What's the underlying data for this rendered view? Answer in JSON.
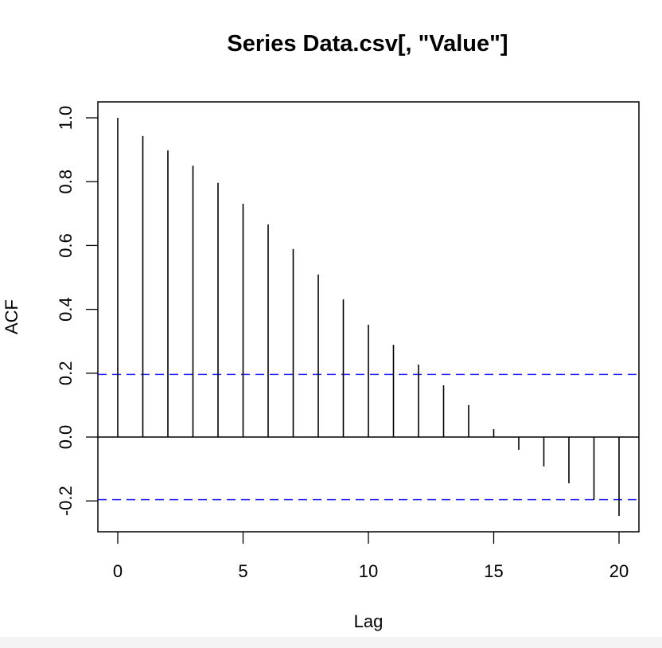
{
  "chart_data": {
    "type": "bar",
    "subtype": "acf-stem",
    "title": "Series  Data.csv[, \"Value\"]",
    "xlabel": "Lag",
    "ylabel": "ACF",
    "x": [
      0,
      1,
      2,
      3,
      4,
      5,
      6,
      7,
      8,
      9,
      10,
      11,
      12,
      13,
      14,
      15,
      16,
      17,
      18,
      19,
      20
    ],
    "values": [
      1.0,
      0.943,
      0.898,
      0.85,
      0.796,
      0.731,
      0.666,
      0.589,
      0.509,
      0.431,
      0.352,
      0.289,
      0.227,
      0.162,
      0.1,
      0.025,
      -0.04,
      -0.092,
      -0.145,
      -0.197,
      -0.247
    ],
    "confidence_bounds": [
      0.196,
      -0.196
    ],
    "xlim": [
      -0.6,
      20.8
    ],
    "ylim": [
      -0.297,
      1.05
    ],
    "xticks": [
      0,
      5,
      10,
      15,
      20
    ],
    "xtick_labels": [
      "0",
      "5",
      "10",
      "15",
      "20"
    ],
    "yticks": [
      -0.2,
      0.0,
      0.2,
      0.4,
      0.6,
      0.8,
      1.0
    ],
    "ytick_labels": [
      "-0.2",
      "0.0",
      "0.2",
      "0.4",
      "0.6",
      "0.8",
      "1.0"
    ],
    "grid": false,
    "legend": null,
    "colors": {
      "bars": "#000000",
      "ci_line": "#1f1fff",
      "axis": "#000000"
    }
  }
}
